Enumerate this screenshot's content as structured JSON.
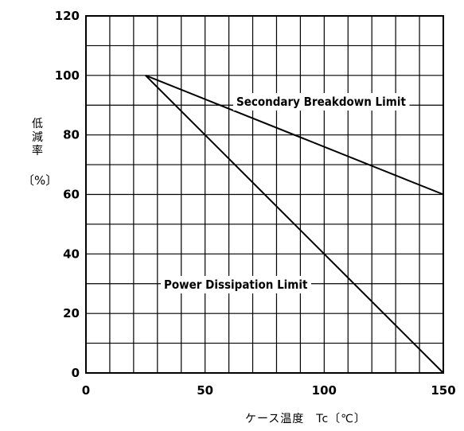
{
  "chart_data": {
    "type": "line",
    "title": "",
    "xlabel": "ケース温度　Tc〔℃〕",
    "ylabel": "低減率",
    "ylabel_unit": "〔%〕",
    "xlim": [
      0,
      150
    ],
    "ylim": [
      0,
      120
    ],
    "x_ticks": [
      "0",
      "50",
      "100",
      "150"
    ],
    "y_ticks": [
      "0",
      "20",
      "40",
      "60",
      "80",
      "100",
      "120"
    ],
    "grid": true,
    "grid_x_step": 10,
    "grid_y_step": 10,
    "series": [
      {
        "name": "Secondary Breakdown Limit",
        "x": [
          25,
          150
        ],
        "y": [
          100,
          60
        ]
      },
      {
        "name": "Power Dissipation Limit",
        "x": [
          25,
          150
        ],
        "y": [
          100,
          0
        ]
      }
    ]
  }
}
